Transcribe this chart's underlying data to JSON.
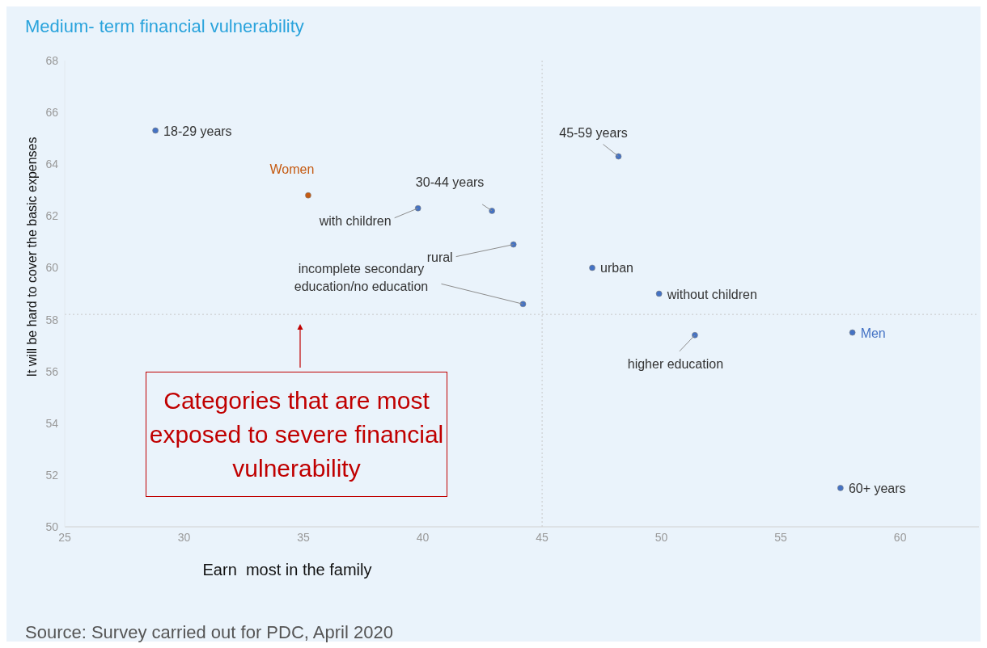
{
  "chart_data": {
    "type": "scatter",
    "title": "Medium- term financial vulnerability",
    "xlabel": "Earn  most in the family",
    "ylabel": "It will be hard to cover the basic expenses",
    "xlim": [
      25,
      63.3
    ],
    "xticks": [
      25,
      30,
      35,
      40,
      45,
      50,
      55,
      60
    ],
    "ylim": [
      50,
      68
    ],
    "yticks": [
      50,
      52,
      54,
      56,
      58,
      60,
      62,
      64,
      66,
      68
    ],
    "grid": false,
    "legend": false,
    "marker": "circle",
    "x": [
      28.8,
      35.2,
      39.8,
      42.9,
      43.8,
      44.2,
      48.2,
      47.1,
      49.9,
      51.4,
      58.0,
      57.5
    ],
    "values": [
      65.3,
      62.8,
      62.3,
      62.2,
      60.9,
      58.6,
      64.3,
      60.0,
      59.0,
      57.4,
      57.5,
      51.5
    ],
    "colors": [
      "#4472c4",
      "#c55a11",
      "#4472c4",
      "#4472c4",
      "#4472c4",
      "#4472c4",
      "#4472c4",
      "#4472c4",
      "#4472c4",
      "#4472c4",
      "#4472c4",
      "#4472c4"
    ],
    "ref_lines": [
      {
        "axis": "x",
        "value": 45,
        "color": "#c8c8c8",
        "line_style": "dotted"
      },
      {
        "axis": "y",
        "value": 58.2,
        "color": "#c8c8c8",
        "line_style": "dotted"
      }
    ],
    "annotations": [
      {
        "text": "18-29 years",
        "x": 28.8,
        "y": 65.3
      },
      {
        "text": "Women",
        "x": 35.2,
        "y": 62.8
      },
      {
        "text": "with children",
        "x": 39.8,
        "y": 62.3
      },
      {
        "text": "30-44 years",
        "x": 42.9,
        "y": 62.2
      },
      {
        "text": "rural",
        "x": 43.8,
        "y": 60.9
      },
      {
        "text": "incomplete secondary education/no education",
        "x": 44.2,
        "y": 58.6
      },
      {
        "text": "45-59 years",
        "x": 48.2,
        "y": 64.3
      },
      {
        "text": "urban",
        "x": 47.1,
        "y": 60.0
      },
      {
        "text": "without children",
        "x": 49.9,
        "y": 59.0
      },
      {
        "text": "higher education",
        "x": 51.4,
        "y": 57.4
      },
      {
        "text": "Men",
        "x": 58.0,
        "y": 57.5
      },
      {
        "text": "60+ years",
        "x": 57.5,
        "y": 51.5
      },
      "Categories that are most exposed to severe financial vulnerability",
      "Source: Survey carried out for PDC, April 2020"
    ]
  }
}
